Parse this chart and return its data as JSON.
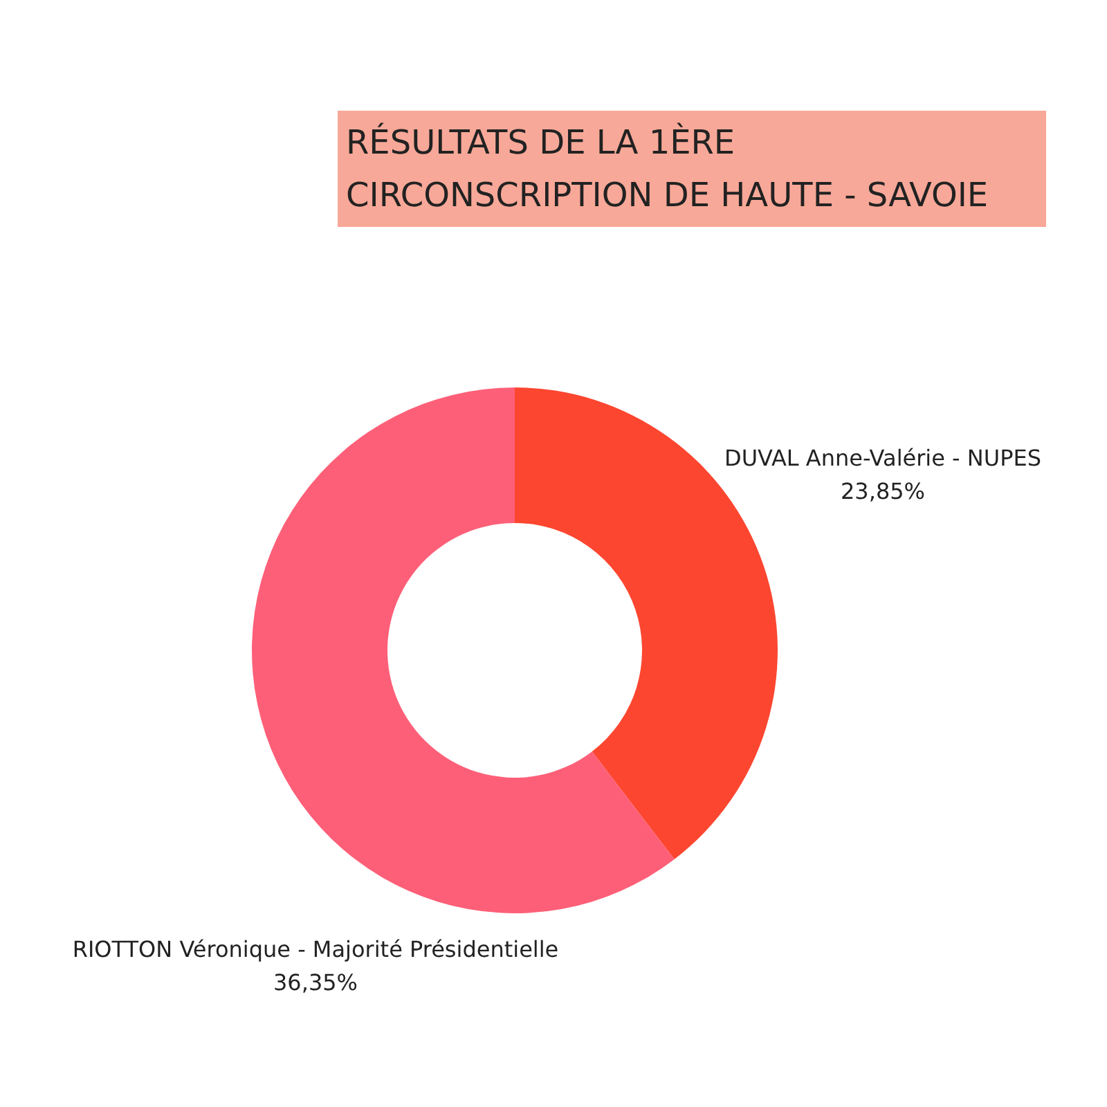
{
  "chart_data": {
    "type": "donut",
    "title": "RÉSULTATS DE LA 1ÈRE CIRCONSCRIPTION DE HAUTE - SAVOIE",
    "categories": [
      "DUVAL Anne-Valérie - NUPES",
      "RIOTTON Véronique - Majorité Présidentielle"
    ],
    "values": [
      23.85,
      36.35
    ],
    "colors": [
      "#fc4630",
      "#fe5f78"
    ],
    "value_labels": [
      "23,85%",
      "36,35%"
    ],
    "legend": false
  }
}
